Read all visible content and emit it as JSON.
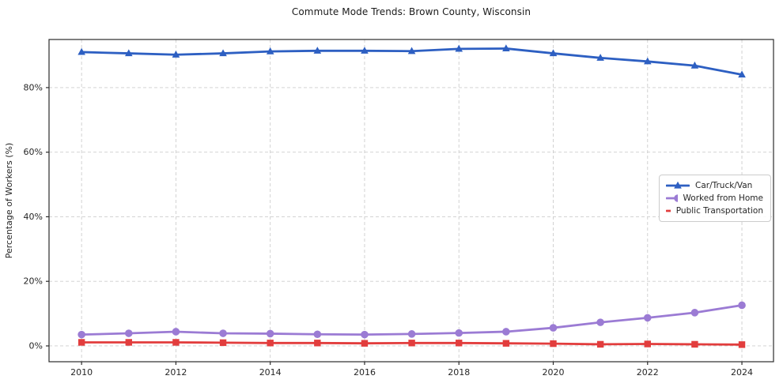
{
  "chart_data": {
    "type": "line",
    "title": "Commute Mode Trends: Brown County, Wisconsin",
    "xlabel": "",
    "ylabel": "Percentage of Workers (%)",
    "x": [
      2010,
      2011,
      2012,
      2013,
      2014,
      2015,
      2016,
      2017,
      2018,
      2019,
      2020,
      2021,
      2022,
      2023,
      2024
    ],
    "series": [
      {
        "name": "Car/Truck/Van",
        "color": "#2d5fc2",
        "marker": "triangle",
        "values": [
          91.0,
          90.6,
          90.2,
          90.6,
          91.2,
          91.4,
          91.4,
          91.3,
          92.0,
          92.1,
          90.6,
          89.2,
          88.1,
          86.8,
          84.0
        ]
      },
      {
        "name": "Worked from Home",
        "color": "#9b7bd4",
        "marker": "circle",
        "values": [
          3.5,
          3.9,
          4.4,
          3.9,
          3.8,
          3.6,
          3.5,
          3.7,
          4.0,
          4.4,
          5.6,
          7.3,
          8.7,
          10.3,
          12.6
        ]
      },
      {
        "name": "Public Transportation",
        "color": "#e23d3d",
        "marker": "square",
        "values": [
          1.1,
          1.1,
          1.1,
          1.0,
          0.9,
          0.9,
          0.8,
          0.9,
          0.9,
          0.8,
          0.7,
          0.5,
          0.6,
          0.5,
          0.4
        ]
      }
    ],
    "xticks": {
      "values": [
        2010,
        2012,
        2014,
        2016,
        2018,
        2020,
        2022,
        2024
      ],
      "labels": [
        "2010",
        "2012",
        "2014",
        "2016",
        "2018",
        "2020",
        "2022",
        "2024"
      ]
    },
    "yticks": {
      "values": [
        0,
        20,
        40,
        60,
        80
      ],
      "labels": [
        "0%",
        "20%",
        "40%",
        "60%",
        "80%"
      ]
    },
    "xlim": [
      2009.31,
      2024.67
    ],
    "ylim": [
      -4.9,
      94.9
    ],
    "grid": true,
    "grid_style": "dashed",
    "legend_position": "center right"
  },
  "style": {
    "grid_color": "#cdcdcd",
    "spine_color": "#2b2b2b",
    "tick_color": "#2b2b2b",
    "background": "#ffffff"
  }
}
